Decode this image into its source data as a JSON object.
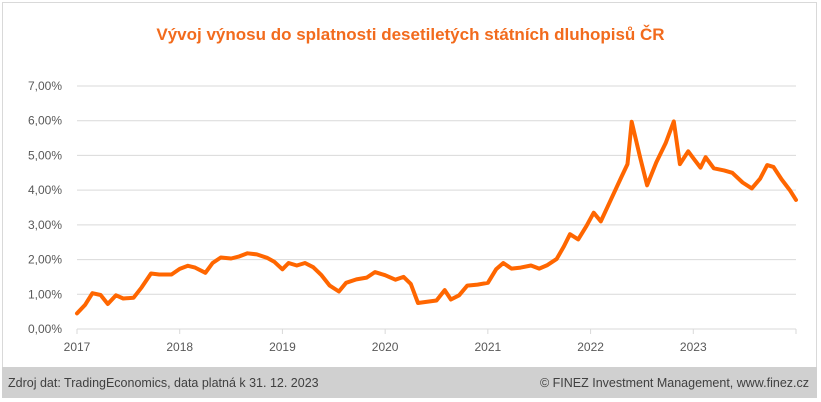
{
  "title": "Vývoj výnosu do splatnosti desetiletých státních dluhopisů ČR",
  "footer": {
    "source": "Zdroj dat: TradingEconomics, data platná k 31. 12. 2023",
    "copyright": "© FINEZ Investment Management, www.finez.cz"
  },
  "colors": {
    "line": "#ff6600",
    "title": "#f26b1d",
    "grid": "#d9d9d9",
    "footer_bg": "#d0d0d0"
  },
  "chart_data": {
    "type": "line",
    "title": "Vývoj výnosu do splatnosti desetiletých státních dluhopisů ČR",
    "xlabel": "",
    "ylabel": "",
    "xlim": [
      2017.0,
      2024.0
    ],
    "ylim": [
      0,
      7
    ],
    "y_ticks": [
      "0,00%",
      "1,00%",
      "2,00%",
      "3,00%",
      "4,00%",
      "5,00%",
      "6,00%",
      "7,00%"
    ],
    "x_ticks": [
      "2017",
      "2018",
      "2019",
      "2020",
      "2021",
      "2022",
      "2023"
    ],
    "grid": true,
    "legend": "none",
    "series": [
      {
        "x": [
          2017.0,
          2017.08,
          2017.15,
          2017.23,
          2017.3,
          2017.38,
          2017.45,
          2017.55,
          2017.63,
          2017.72,
          2017.8,
          2017.92,
          2018.0,
          2018.08,
          2018.15,
          2018.25,
          2018.32,
          2018.4,
          2018.5,
          2018.58,
          2018.66,
          2018.75,
          2018.85,
          2018.92,
          2019.0,
          2019.06,
          2019.14,
          2019.22,
          2019.3,
          2019.38,
          2019.46,
          2019.55,
          2019.62,
          2019.72,
          2019.82,
          2019.9,
          2020.0,
          2020.1,
          2020.18,
          2020.25,
          2020.32,
          2020.4,
          2020.5,
          2020.58,
          2020.64,
          2020.72,
          2020.8,
          2020.9,
          2021.0,
          2021.08,
          2021.15,
          2021.23,
          2021.32,
          2021.42,
          2021.5,
          2021.58,
          2021.67,
          2021.74,
          2021.8,
          2021.88,
          2021.96,
          2022.03,
          2022.1,
          2022.2,
          2022.3,
          2022.36,
          2022.4,
          2022.48,
          2022.55,
          2022.64,
          2022.73,
          2022.81,
          2022.87,
          2022.95,
          2023.0,
          2023.07,
          2023.12,
          2023.2,
          2023.3,
          2023.38,
          2023.48,
          2023.57,
          2023.65,
          2023.72,
          2023.78,
          2023.86,
          2023.94,
          2024.0
        ],
        "values": [
          0.45,
          0.7,
          1.03,
          0.98,
          0.72,
          0.97,
          0.88,
          0.9,
          1.2,
          1.6,
          1.57,
          1.57,
          1.73,
          1.82,
          1.77,
          1.62,
          1.9,
          2.06,
          2.03,
          2.09,
          2.18,
          2.15,
          2.05,
          1.94,
          1.72,
          1.9,
          1.83,
          1.9,
          1.78,
          1.55,
          1.25,
          1.08,
          1.33,
          1.43,
          1.48,
          1.64,
          1.55,
          1.42,
          1.5,
          1.3,
          0.75,
          0.78,
          0.82,
          1.12,
          0.85,
          0.97,
          1.25,
          1.28,
          1.33,
          1.72,
          1.9,
          1.74,
          1.77,
          1.83,
          1.74,
          1.84,
          2.02,
          2.38,
          2.73,
          2.58,
          2.97,
          3.35,
          3.1,
          3.74,
          4.38,
          4.75,
          5.97,
          4.97,
          4.14,
          4.8,
          5.35,
          5.98,
          4.75,
          5.12,
          4.92,
          4.65,
          4.95,
          4.63,
          4.57,
          4.5,
          4.22,
          4.05,
          4.33,
          4.72,
          4.67,
          4.31,
          4.0,
          3.72
        ]
      }
    ]
  }
}
